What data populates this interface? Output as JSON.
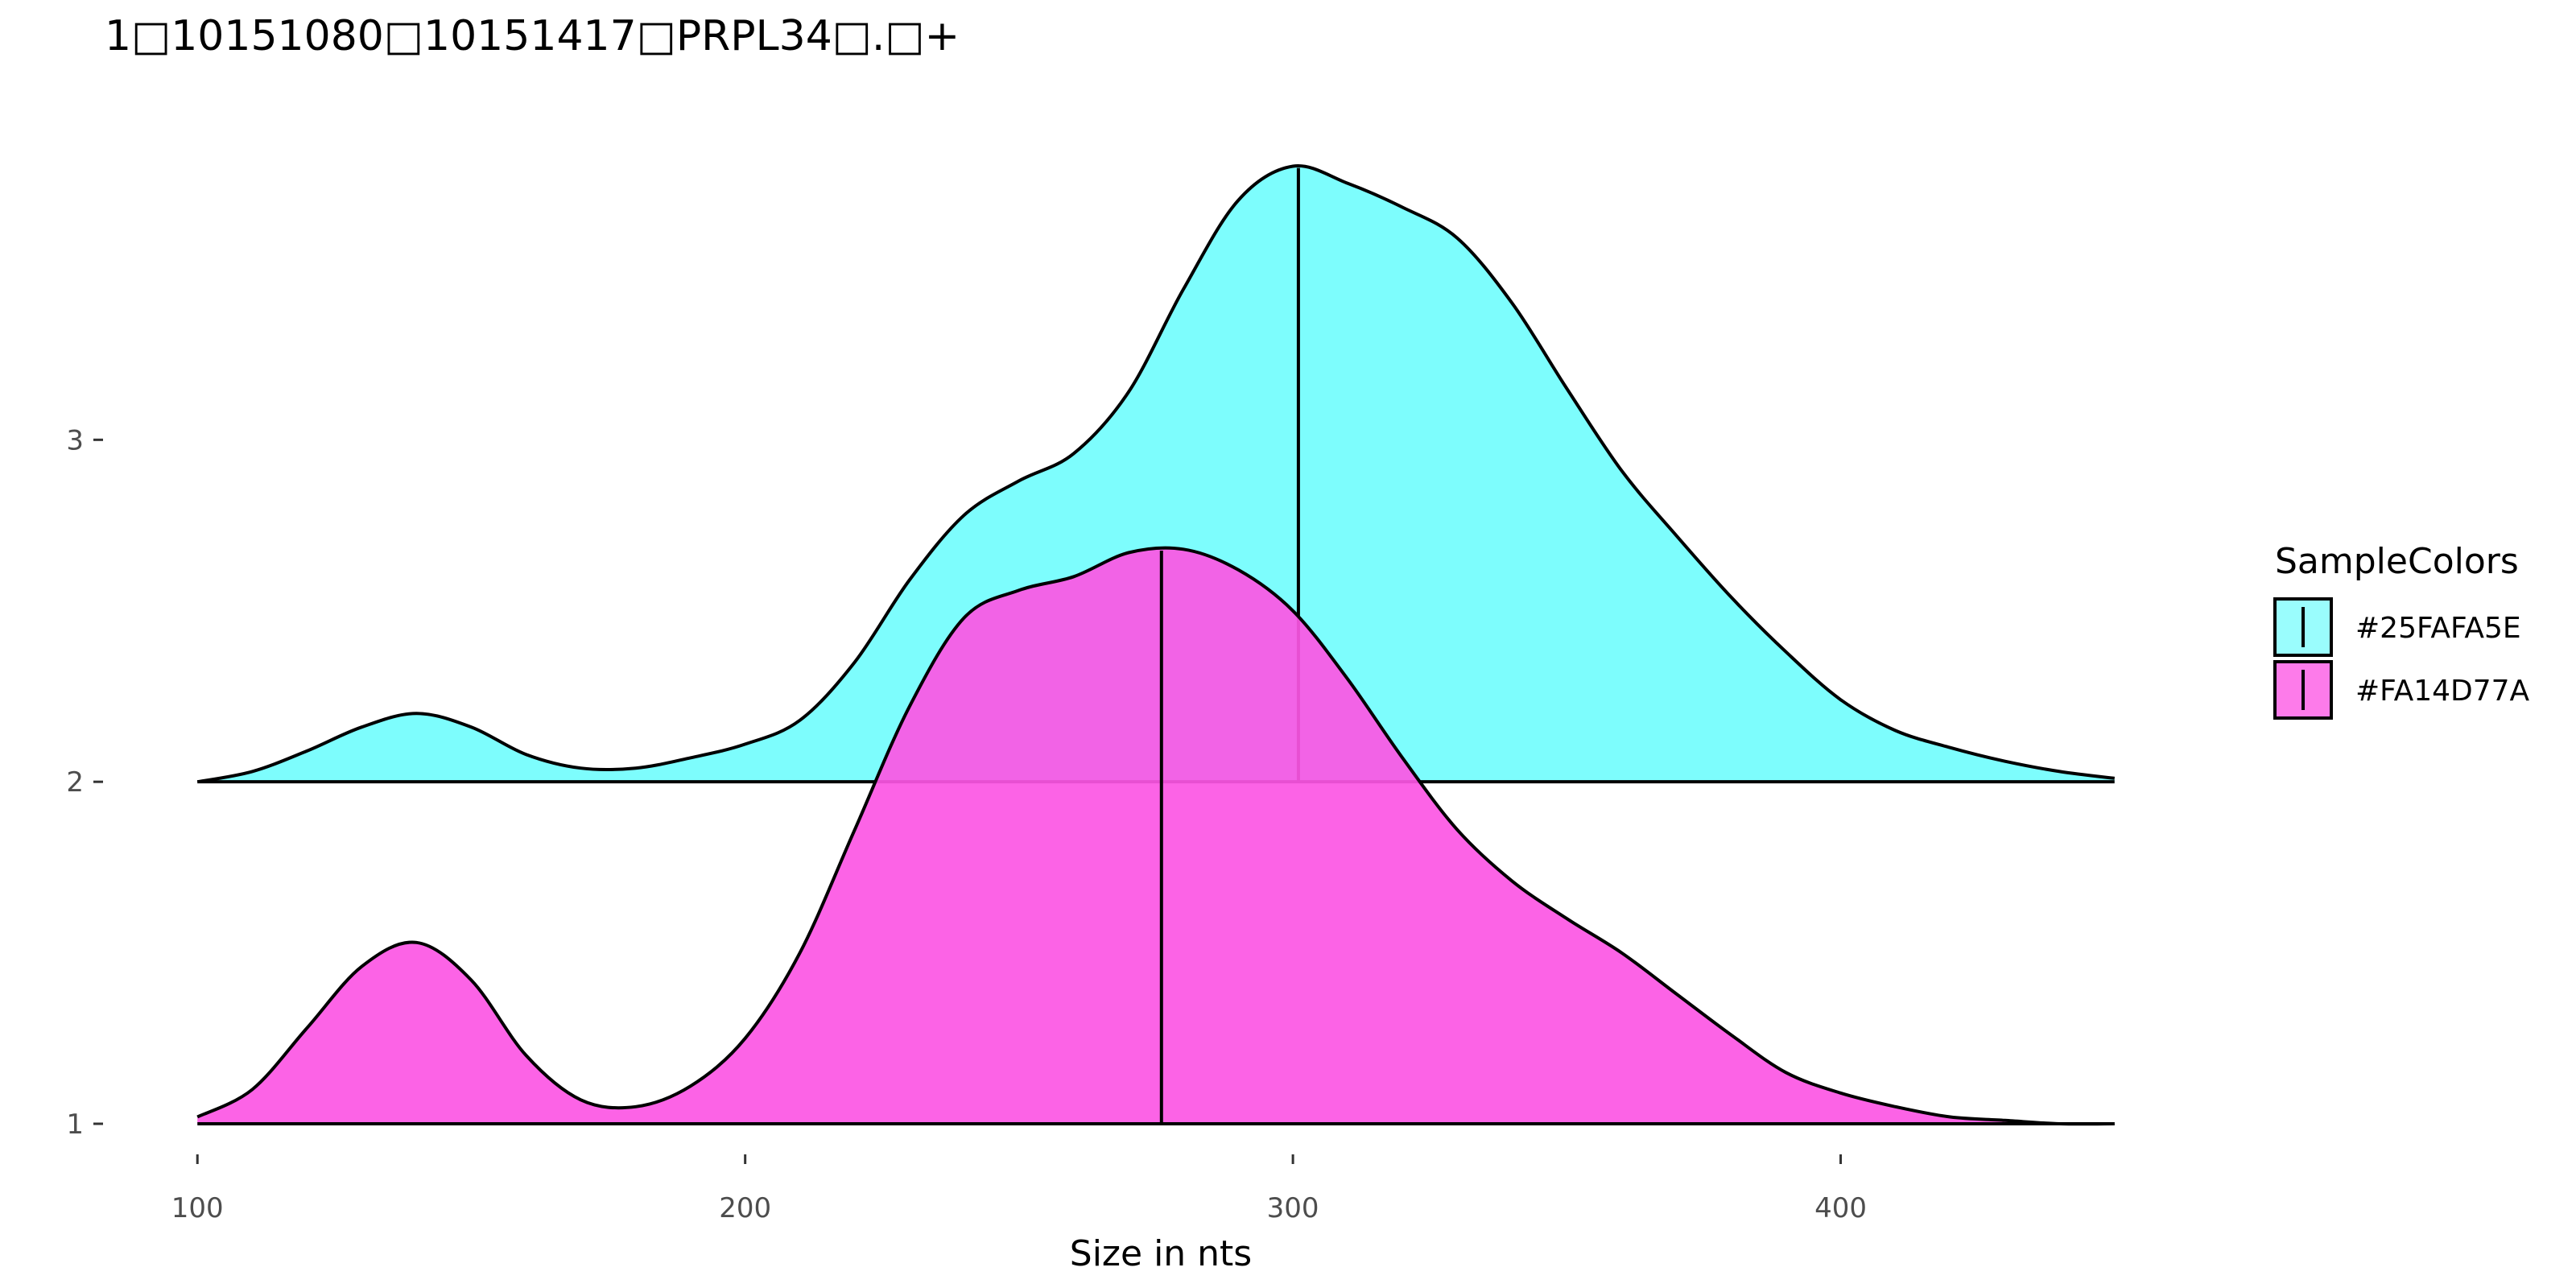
{
  "chart_data": {
    "type": "area",
    "subtype": "ridgeline-density",
    "title": "1□10151080□10151417□PRPL34□.□+",
    "xlabel": "Size in nts",
    "ylabel": "",
    "xlim": [
      91,
      459
    ],
    "ylim": [
      0.92,
      3.98
    ],
    "x_ticks": [
      100,
      200,
      300,
      400
    ],
    "y_ticks": [
      1,
      2,
      3
    ],
    "grid": false,
    "legend": {
      "title": "SampleColors",
      "placement": "right",
      "entries": [
        "#25FAFA5E",
        "#FA14D77A"
      ]
    },
    "series": [
      {
        "name": "#25FAFA5E",
        "fill": "#7dfdfd",
        "baseline": 2,
        "median": 301,
        "x": [
          100,
          110,
          120,
          130,
          140,
          150,
          160,
          170,
          180,
          190,
          200,
          210,
          220,
          230,
          240,
          250,
          260,
          270,
          280,
          290,
          300,
          310,
          320,
          330,
          340,
          350,
          360,
          370,
          380,
          390,
          400,
          410,
          420,
          430,
          440,
          450
        ],
        "values": [
          2.0,
          2.03,
          2.09,
          2.16,
          2.2,
          2.16,
          2.08,
          2.04,
          2.04,
          2.07,
          2.11,
          2.18,
          2.35,
          2.59,
          2.78,
          2.88,
          2.96,
          3.14,
          3.44,
          3.7,
          3.8,
          3.75,
          3.68,
          3.59,
          3.4,
          3.15,
          2.91,
          2.72,
          2.54,
          2.38,
          2.24,
          2.15,
          2.1,
          2.06,
          2.03,
          2.01
        ]
      },
      {
        "name": "#FA14D77A",
        "fill": "#fc56e4",
        "baseline": 1,
        "median": 276,
        "x": [
          100,
          110,
          120,
          130,
          140,
          150,
          160,
          170,
          180,
          190,
          200,
          210,
          220,
          230,
          240,
          250,
          260,
          270,
          280,
          290,
          300,
          310,
          320,
          330,
          340,
          350,
          360,
          370,
          380,
          390,
          400,
          410,
          420,
          430,
          440,
          450
        ],
        "values": [
          1.02,
          1.1,
          1.28,
          1.46,
          1.53,
          1.42,
          1.2,
          1.07,
          1.05,
          1.11,
          1.25,
          1.5,
          1.86,
          2.22,
          2.48,
          2.56,
          2.6,
          2.67,
          2.68,
          2.62,
          2.5,
          2.3,
          2.07,
          1.86,
          1.71,
          1.6,
          1.5,
          1.38,
          1.26,
          1.15,
          1.09,
          1.05,
          1.02,
          1.01,
          1.0,
          1.0
        ]
      }
    ]
  }
}
